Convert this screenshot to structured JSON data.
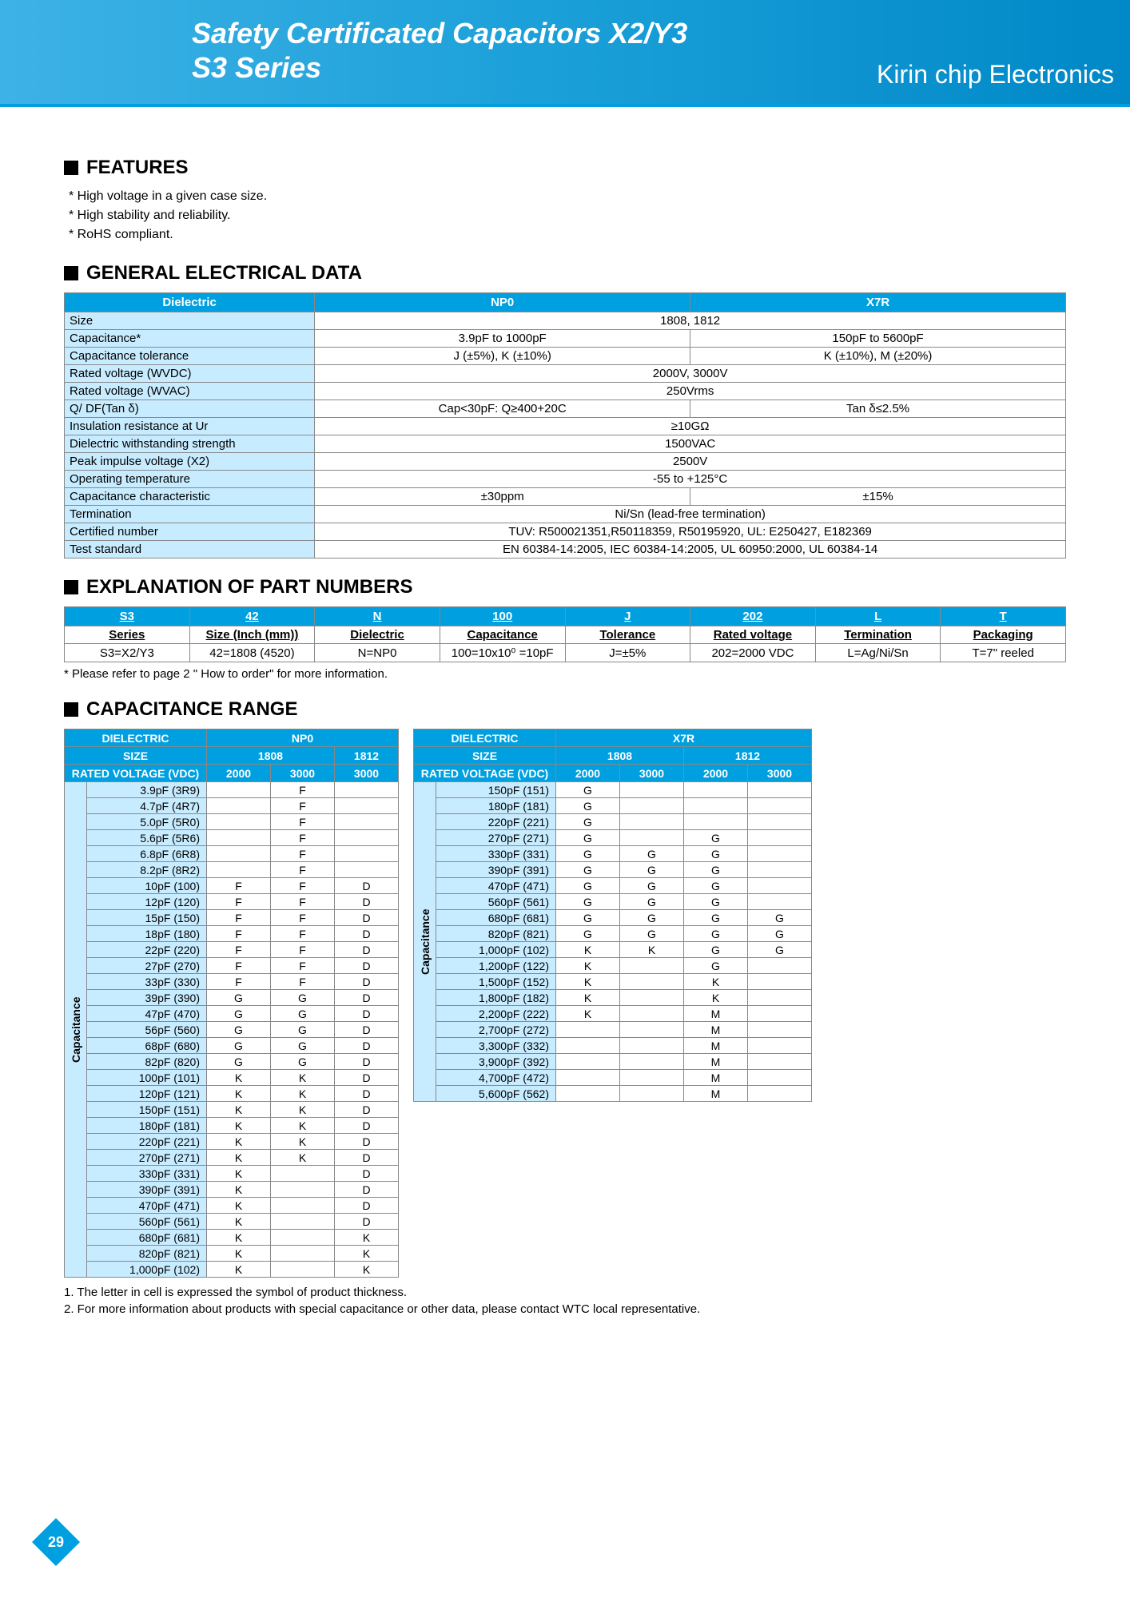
{
  "header": {
    "title_l1": "Safety Certificated Capacitors X2/Y3",
    "title_l2": "S3 Series",
    "brand": "Kirin chip Electronics"
  },
  "features": {
    "heading": "FEATURES",
    "items": [
      "* High voltage in a given case size.",
      "* High stability and reliability.",
      "* RoHS compliant."
    ]
  },
  "ged": {
    "heading": "GENERAL ELECTRICAL DATA",
    "cols": [
      "Dielectric",
      "NP0",
      "X7R"
    ],
    "rows": [
      {
        "label": "Size",
        "np0": "1808, 1812",
        "x7r": null,
        "span": true
      },
      {
        "label": "Capacitance*",
        "np0": "3.9pF to 1000pF",
        "x7r": "150pF to 5600pF"
      },
      {
        "label": "Capacitance tolerance",
        "np0": "J (±5%), K (±10%)",
        "x7r": "K (±10%), M (±20%)"
      },
      {
        "label": "Rated voltage (WVDC)",
        "np0": "2000V, 3000V",
        "x7r": null,
        "span": true
      },
      {
        "label": "Rated voltage (WVAC)",
        "np0": "250Vrms",
        "x7r": null,
        "span": true
      },
      {
        "label": "Q/ DF(Tan δ)",
        "np0": "Cap<30pF: Q≥400+20C",
        "x7r": "Tan δ≤2.5%"
      },
      {
        "label": "Insulation resistance at Ur",
        "np0": "≥10GΩ",
        "x7r": null,
        "span": true
      },
      {
        "label": "Dielectric withstanding strength",
        "np0": "1500VAC",
        "x7r": null,
        "span": true
      },
      {
        "label": "Peak impulse voltage (X2)",
        "np0": "2500V",
        "x7r": null,
        "span": true
      },
      {
        "label": "Operating temperature",
        "np0": "-55 to +125°C",
        "x7r": null,
        "span": true
      },
      {
        "label": "Capacitance characteristic",
        "np0": "±30ppm",
        "x7r": "±15%"
      },
      {
        "label": "Termination",
        "np0": "Ni/Sn (lead-free termination)",
        "x7r": null,
        "span": true
      },
      {
        "label": "Certified number",
        "np0": "TUV: R500021351,R50118359, R50195920, UL: E250427, E182369",
        "x7r": null,
        "span": true
      },
      {
        "label": "Test standard",
        "np0": "EN 60384-14:2005, IEC 60384-14:2005, UL 60950:2000, UL 60384-14",
        "x7r": null,
        "span": true
      }
    ]
  },
  "part": {
    "heading": "EXPLANATION OF PART NUMBERS",
    "headers": [
      "S3",
      "42",
      "N",
      "100",
      "J",
      "202",
      "L",
      "T"
    ],
    "subs": [
      "Series",
      "Size (Inch (mm))",
      "Dielectric",
      "Capacitance",
      "Tolerance",
      "Rated voltage",
      "Termination",
      "Packaging"
    ],
    "vals": [
      "S3=X2/Y3",
      "42=1808 (4520)",
      "N=NP0",
      "100=10x10⁰ =10pF",
      "J=±5%",
      "202=2000 VDC",
      "L=Ag/Ni/Sn",
      "T=7\" reeled"
    ],
    "note": "* Please refer to page 2 \" How to order\" for more information."
  },
  "cap": {
    "heading": "CAPACITANCE RANGE",
    "left": {
      "dielectric_label": "DIELECTRIC",
      "dielectric": "NP0",
      "size_label": "SIZE",
      "sizes": [
        "1808",
        "1812"
      ],
      "rv_label": "RATED VOLTAGE (VDC)",
      "voltages": [
        "2000",
        "3000",
        "3000"
      ],
      "rot_label": "Capacitance",
      "rows": [
        {
          "c": "3.9pF (3R9)",
          "v": [
            "",
            "F",
            ""
          ]
        },
        {
          "c": "4.7pF (4R7)",
          "v": [
            "",
            "F",
            ""
          ]
        },
        {
          "c": "5.0pF (5R0)",
          "v": [
            "",
            "F",
            ""
          ]
        },
        {
          "c": "5.6pF (5R6)",
          "v": [
            "",
            "F",
            ""
          ]
        },
        {
          "c": "6.8pF (6R8)",
          "v": [
            "",
            "F",
            ""
          ]
        },
        {
          "c": "8.2pF (8R2)",
          "v": [
            "",
            "F",
            ""
          ]
        },
        {
          "c": "10pF (100)",
          "v": [
            "F",
            "F",
            "D"
          ]
        },
        {
          "c": "12pF (120)",
          "v": [
            "F",
            "F",
            "D"
          ]
        },
        {
          "c": "15pF (150)",
          "v": [
            "F",
            "F",
            "D"
          ]
        },
        {
          "c": "18pF (180)",
          "v": [
            "F",
            "F",
            "D"
          ]
        },
        {
          "c": "22pF (220)",
          "v": [
            "F",
            "F",
            "D"
          ]
        },
        {
          "c": "27pF (270)",
          "v": [
            "F",
            "F",
            "D"
          ]
        },
        {
          "c": "33pF (330)",
          "v": [
            "F",
            "F",
            "D"
          ]
        },
        {
          "c": "39pF (390)",
          "v": [
            "G",
            "G",
            "D"
          ]
        },
        {
          "c": "47pF (470)",
          "v": [
            "G",
            "G",
            "D"
          ]
        },
        {
          "c": "56pF (560)",
          "v": [
            "G",
            "G",
            "D"
          ]
        },
        {
          "c": "68pF (680)",
          "v": [
            "G",
            "G",
            "D"
          ]
        },
        {
          "c": "82pF (820)",
          "v": [
            "G",
            "G",
            "D"
          ]
        },
        {
          "c": "100pF (101)",
          "v": [
            "K",
            "K",
            "D"
          ]
        },
        {
          "c": "120pF (121)",
          "v": [
            "K",
            "K",
            "D"
          ]
        },
        {
          "c": "150pF (151)",
          "v": [
            "K",
            "K",
            "D"
          ]
        },
        {
          "c": "180pF (181)",
          "v": [
            "K",
            "K",
            "D"
          ]
        },
        {
          "c": "220pF (221)",
          "v": [
            "K",
            "K",
            "D"
          ]
        },
        {
          "c": "270pF (271)",
          "v": [
            "K",
            "K",
            "D"
          ]
        },
        {
          "c": "330pF (331)",
          "v": [
            "K",
            "",
            "D"
          ]
        },
        {
          "c": "390pF (391)",
          "v": [
            "K",
            "",
            "D"
          ]
        },
        {
          "c": "470pF (471)",
          "v": [
            "K",
            "",
            "D"
          ]
        },
        {
          "c": "560pF (561)",
          "v": [
            "K",
            "",
            "D"
          ]
        },
        {
          "c": "680pF (681)",
          "v": [
            "K",
            "",
            "K"
          ]
        },
        {
          "c": "820pF (821)",
          "v": [
            "K",
            "",
            "K"
          ]
        },
        {
          "c": "1,000pF (102)",
          "v": [
            "K",
            "",
            "K"
          ]
        }
      ]
    },
    "right": {
      "dielectric_label": "DIELECTRIC",
      "dielectric": "X7R",
      "size_label": "SIZE",
      "sizes": [
        "1808",
        "1812"
      ],
      "rv_label": "RATED VOLTAGE (VDC)",
      "voltages": [
        "2000",
        "3000",
        "2000",
        "3000"
      ],
      "rot_label": "Capacitance",
      "rows": [
        {
          "c": "150pF (151)",
          "v": [
            "G",
            "",
            "",
            ""
          ]
        },
        {
          "c": "180pF (181)",
          "v": [
            "G",
            "",
            "",
            ""
          ]
        },
        {
          "c": "220pF (221)",
          "v": [
            "G",
            "",
            "",
            ""
          ]
        },
        {
          "c": "270pF (271)",
          "v": [
            "G",
            "",
            "G",
            ""
          ]
        },
        {
          "c": "330pF (331)",
          "v": [
            "G",
            "G",
            "G",
            ""
          ]
        },
        {
          "c": "390pF (391)",
          "v": [
            "G",
            "G",
            "G",
            ""
          ]
        },
        {
          "c": "470pF (471)",
          "v": [
            "G",
            "G",
            "G",
            ""
          ]
        },
        {
          "c": "560pF (561)",
          "v": [
            "G",
            "G",
            "G",
            ""
          ]
        },
        {
          "c": "680pF (681)",
          "v": [
            "G",
            "G",
            "G",
            "G"
          ]
        },
        {
          "c": "820pF (821)",
          "v": [
            "G",
            "G",
            "G",
            "G"
          ]
        },
        {
          "c": "1,000pF (102)",
          "v": [
            "K",
            "K",
            "G",
            "G"
          ]
        },
        {
          "c": "1,200pF (122)",
          "v": [
            "K",
            "",
            "G",
            ""
          ]
        },
        {
          "c": "1,500pF (152)",
          "v": [
            "K",
            "",
            "K",
            ""
          ]
        },
        {
          "c": "1,800pF (182)",
          "v": [
            "K",
            "",
            "K",
            ""
          ]
        },
        {
          "c": "2,200pF (222)",
          "v": [
            "K",
            "",
            "M",
            ""
          ]
        },
        {
          "c": "2,700pF (272)",
          "v": [
            "",
            "",
            "M",
            ""
          ]
        },
        {
          "c": "3,300pF (332)",
          "v": [
            "",
            "",
            "M",
            ""
          ]
        },
        {
          "c": "3,900pF (392)",
          "v": [
            "",
            "",
            "M",
            ""
          ]
        },
        {
          "c": "4,700pF (472)",
          "v": [
            "",
            "",
            "M",
            ""
          ]
        },
        {
          "c": "5,600pF (562)",
          "v": [
            "",
            "",
            "M",
            ""
          ]
        }
      ]
    },
    "footnotes": [
      "1. The letter in cell is expressed the symbol of product thickness.",
      "2. For more information about products with special capacitance or other data, please contact WTC local representative."
    ]
  },
  "page_number": "29",
  "colors": {
    "accent": "#00a0e0",
    "light": "#c8ecff"
  }
}
